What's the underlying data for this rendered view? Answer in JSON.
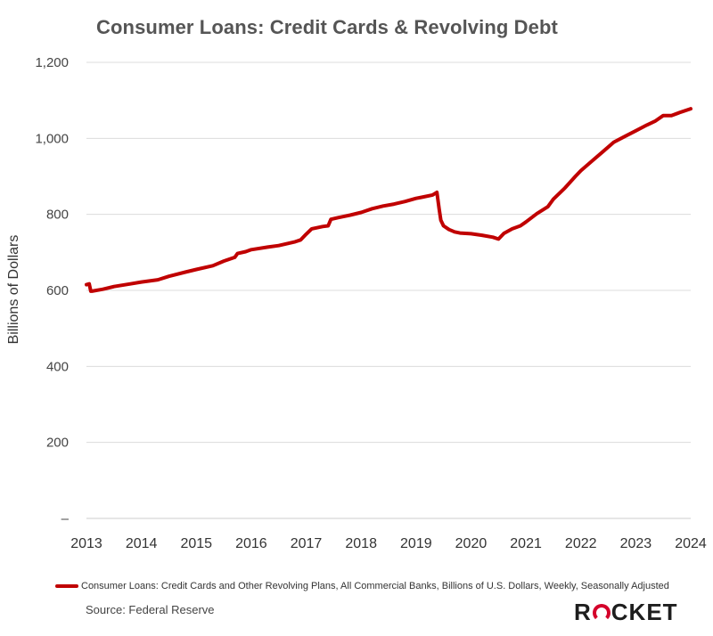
{
  "chart_data": {
    "type": "line",
    "title": "Consumer Loans: Credit Cards & Revolving Debt",
    "ylabel": "Billions of Dollars",
    "xlabel": "",
    "ylim": [
      0,
      1200
    ],
    "xlim": [
      2013,
      2024
    ],
    "y_ticks": [
      "–",
      "200",
      "400",
      "600",
      "800",
      "1,000",
      "1,200"
    ],
    "y_tick_values": [
      0,
      200,
      400,
      600,
      800,
      1000,
      1200
    ],
    "x_ticks": [
      "2013",
      "2014",
      "2015",
      "2016",
      "2017",
      "2018",
      "2019",
      "2020",
      "2021",
      "2022",
      "2023",
      "2024"
    ],
    "grid": true,
    "series": [
      {
        "name": "Consumer Loans: Credit Cards and Other Revolving Plans, All Commercial Banks, Billions of U.S. Dollars, Weekly, Seasonally Adjusted",
        "color": "#c00000",
        "x": [
          2013.0,
          2013.05,
          2013.08,
          2013.1,
          2013.3,
          2013.5,
          2013.8,
          2014.0,
          2014.3,
          2014.5,
          2014.8,
          2015.0,
          2015.3,
          2015.5,
          2015.7,
          2015.75,
          2015.9,
          2016.0,
          2016.3,
          2016.5,
          2016.8,
          2016.9,
          2017.0,
          2017.1,
          2017.3,
          2017.4,
          2017.45,
          2017.6,
          2017.8,
          2018.0,
          2018.2,
          2018.4,
          2018.6,
          2018.8,
          2019.0,
          2019.1,
          2019.3,
          2019.38,
          2019.42,
          2019.45,
          2019.5,
          2019.6,
          2019.7,
          2019.8,
          2020.0,
          2020.2,
          2020.4,
          2020.5,
          2020.6,
          2020.75,
          2020.9,
          2021.0,
          2021.2,
          2021.4,
          2021.5,
          2021.7,
          2021.9,
          2022.0,
          2022.2,
          2022.4,
          2022.6,
          2022.8,
          2023.0,
          2023.2,
          2023.35,
          2023.5,
          2023.65,
          2023.8,
          2024.0
        ],
        "values": [
          615,
          617,
          598,
          598,
          603,
          610,
          617,
          622,
          628,
          637,
          648,
          655,
          665,
          677,
          687,
          697,
          702,
          707,
          714,
          718,
          728,
          733,
          748,
          762,
          768,
          770,
          787,
          792,
          798,
          805,
          815,
          822,
          827,
          834,
          842,
          845,
          851,
          858,
          815,
          785,
          770,
          760,
          754,
          751,
          749,
          745,
          740,
          735,
          750,
          762,
          770,
          780,
          802,
          820,
          840,
          868,
          900,
          915,
          940,
          965,
          990,
          1005,
          1020,
          1035,
          1045,
          1060,
          1060,
          1068,
          1078
        ]
      }
    ]
  },
  "source": "Source: Federal Reserve",
  "logo": {
    "pre": "R",
    "post": "CKET",
    "accent_color": "#d4002a"
  }
}
